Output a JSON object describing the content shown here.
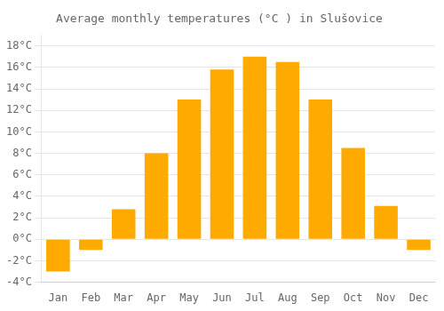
{
  "chart_data": {
    "type": "bar",
    "title": "Average monthly temperatures (°C ) in Slušovice",
    "categories": [
      "Jan",
      "Feb",
      "Mar",
      "Apr",
      "May",
      "Jun",
      "Jul",
      "Aug",
      "Sep",
      "Oct",
      "Nov",
      "Dec"
    ],
    "values": [
      -3.0,
      -1.0,
      2.8,
      8.0,
      13.0,
      15.8,
      17.0,
      16.5,
      13.0,
      8.5,
      3.1,
      -1.0
    ],
    "color": "#FFAA00",
    "ylim": [
      -4,
      19
    ],
    "yticks": [
      {
        "value": -4,
        "label": "-4°C"
      },
      {
        "value": -2,
        "label": "-2°C"
      },
      {
        "value": 0,
        "label": "0°C"
      },
      {
        "value": 2,
        "label": "2°C"
      },
      {
        "value": 4,
        "label": "4°C"
      },
      {
        "value": 6,
        "label": "6°C"
      },
      {
        "value": 8,
        "label": "8°C"
      },
      {
        "value": 10,
        "label": "10°C"
      },
      {
        "value": 12,
        "label": "12°C"
      },
      {
        "value": 14,
        "label": "14°C"
      },
      {
        "value": 16,
        "label": "16°C"
      },
      {
        "value": 18,
        "label": "18°C"
      }
    ],
    "grid": true
  }
}
